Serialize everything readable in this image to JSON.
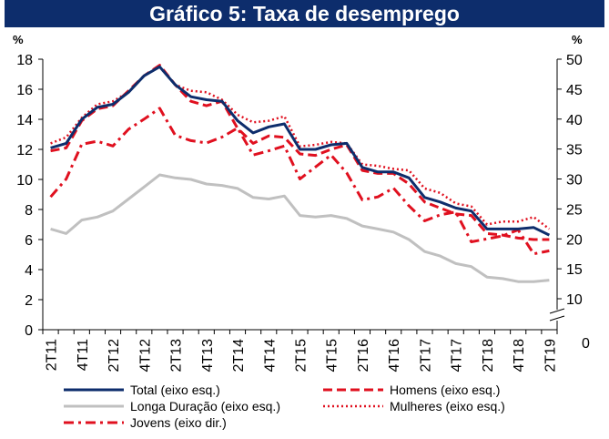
{
  "chart_data": {
    "type": "line",
    "title": "Gráfico 5: Taxa de desemprego",
    "left_unit": "%",
    "right_unit": "%",
    "colors": {
      "title_bg": "#0d2d6c",
      "total": "#0d2d6c",
      "longa": "#c0c0c0",
      "red": "#e0101f"
    },
    "left_axis": {
      "min": 0,
      "max": 18,
      "ticks": [
        "0",
        "2",
        "4",
        "6",
        "8",
        "10",
        "12",
        "14",
        "16",
        "18"
      ]
    },
    "right_axis": {
      "min": 10,
      "max": 50,
      "ticks": [
        "10",
        "15",
        "20",
        "25",
        "30",
        "35",
        "40",
        "45",
        "50"
      ],
      "zero_label": "0",
      "break": true
    },
    "x_tick_labels": [
      "2T11",
      "4T11",
      "2T12",
      "4T12",
      "2T13",
      "4T13",
      "2T14",
      "4T14",
      "2T15",
      "4T15",
      "2T16",
      "4T16",
      "2T17",
      "4T17",
      "2T18",
      "4T18",
      "2T19"
    ],
    "x_ticks_every": 2,
    "x": [
      "2T11",
      "3T11",
      "4T11",
      "1T12",
      "2T12",
      "3T12",
      "4T12",
      "1T13",
      "2T13",
      "3T13",
      "4T13",
      "1T14",
      "2T14",
      "3T14",
      "4T14",
      "1T15",
      "2T15",
      "3T15",
      "4T15",
      "1T16",
      "2T16",
      "3T16",
      "4T16",
      "1T17",
      "2T17",
      "3T17",
      "4T17",
      "1T18",
      "2T18",
      "3T18",
      "4T18",
      "1T19",
      "2T19"
    ],
    "series": [
      {
        "key": "total",
        "name": "Total (eixo esq.)",
        "axis": "left",
        "style": "solid",
        "values": [
          12.1,
          12.4,
          14.0,
          14.8,
          15.0,
          15.8,
          16.9,
          17.5,
          16.3,
          15.5,
          15.3,
          15.2,
          13.9,
          13.1,
          13.5,
          13.7,
          12.0,
          12.0,
          12.3,
          12.4,
          10.8,
          10.5,
          10.5,
          10.1,
          8.8,
          8.5,
          8.1,
          7.9,
          6.7,
          6.7,
          6.7,
          6.8,
          6.3
        ]
      },
      {
        "key": "homens",
        "name": "Homens (eixo esq.)",
        "axis": "left",
        "style": "dash",
        "values": [
          11.9,
          12.1,
          13.9,
          14.7,
          14.9,
          15.9,
          16.9,
          17.6,
          16.3,
          15.2,
          14.9,
          15.2,
          13.4,
          12.4,
          12.9,
          12.8,
          11.7,
          11.6,
          12.0,
          12.3,
          10.6,
          10.4,
          10.4,
          9.7,
          8.5,
          8.1,
          7.7,
          7.6,
          6.4,
          6.3,
          6.1,
          6.0,
          6.0
        ]
      },
      {
        "key": "longa",
        "name": "Longa Duração (eixo esq.)",
        "axis": "left",
        "style": "solid",
        "values": [
          6.7,
          6.4,
          7.3,
          7.5,
          7.9,
          8.7,
          9.5,
          10.3,
          10.1,
          10.0,
          9.7,
          9.6,
          9.4,
          8.8,
          8.7,
          8.9,
          7.6,
          7.5,
          7.6,
          7.4,
          6.9,
          6.7,
          6.5,
          6.0,
          5.2,
          4.9,
          4.4,
          4.2,
          3.5,
          3.4,
          3.2,
          3.2,
          3.3
        ]
      },
      {
        "key": "mulheres",
        "name": "Mulheres (eixo esq.)",
        "axis": "left",
        "style": "dot",
        "values": [
          12.4,
          12.8,
          14.1,
          15.0,
          15.2,
          15.8,
          16.9,
          17.5,
          16.3,
          15.9,
          15.8,
          15.3,
          14.3,
          13.8,
          13.9,
          14.2,
          12.2,
          12.3,
          12.5,
          12.4,
          11.0,
          10.9,
          10.7,
          10.6,
          9.4,
          9.1,
          8.4,
          8.2,
          7.0,
          7.2,
          7.2,
          7.5,
          6.7
        ]
      },
      {
        "key": "jovens",
        "name": "Jovens (eixo dir.)",
        "axis": "right",
        "style": "dashdot",
        "values": [
          27.0,
          30.0,
          35.8,
          36.3,
          35.5,
          38.3,
          40.0,
          41.8,
          37.3,
          36.4,
          36.0,
          37.0,
          38.5,
          34.0,
          34.7,
          35.5,
          30.0,
          32.0,
          34.0,
          31.0,
          26.5,
          27.0,
          28.5,
          25.5,
          23.0,
          24.0,
          24.5,
          19.5,
          20.0,
          20.5,
          21.5,
          17.5,
          18.0
        ]
      }
    ],
    "legend": {
      "placement": "bottom",
      "items": [
        {
          "key": "total",
          "label": "Total (eixo esq.)"
        },
        {
          "key": "homens",
          "label": "Homens (eixo esq.)"
        },
        {
          "key": "longa",
          "label": "Longa Duração (eixo esq.)"
        },
        {
          "key": "mulheres",
          "label": "Mulheres (eixo esq.)"
        },
        {
          "key": "jovens",
          "label": "Jovens (eixo dir.)"
        }
      ]
    }
  }
}
